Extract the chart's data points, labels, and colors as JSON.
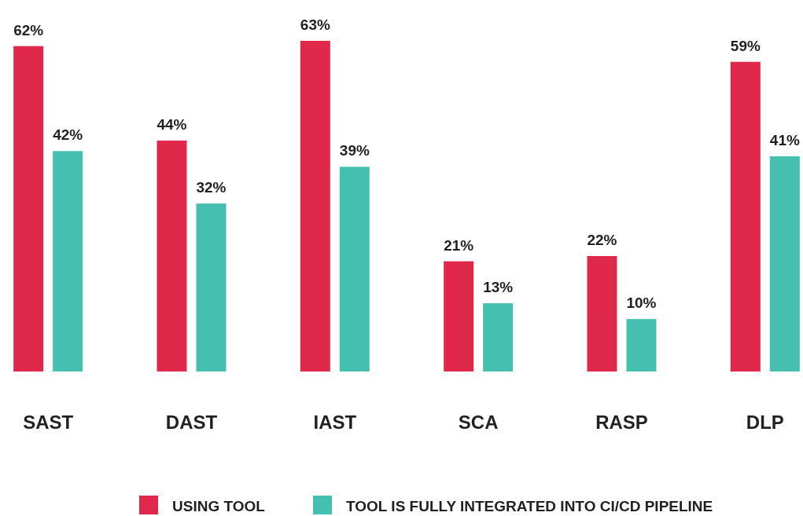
{
  "chart_data": {
    "type": "bar",
    "categories": [
      "SAST",
      "DAST",
      "IAST",
      "SCA",
      "RASP",
      "DLP"
    ],
    "series": [
      {
        "name": "USING TOOL",
        "color": "#e0294a",
        "values": [
          62,
          44,
          63,
          21,
          22,
          59
        ],
        "value_labels": [
          "62%",
          "44%",
          "63%",
          "21%",
          "22%",
          "59%"
        ]
      },
      {
        "name": "TOOL IS FULLY INTEGRATED INTO CI/CD PIPELINE",
        "color": "#45bfb0",
        "values": [
          42,
          32,
          39,
          13,
          10,
          41
        ],
        "value_labels": [
          "42%",
          "32%",
          "39%",
          "13%",
          "10%",
          "41%"
        ]
      }
    ],
    "legend": "bottom"
  }
}
